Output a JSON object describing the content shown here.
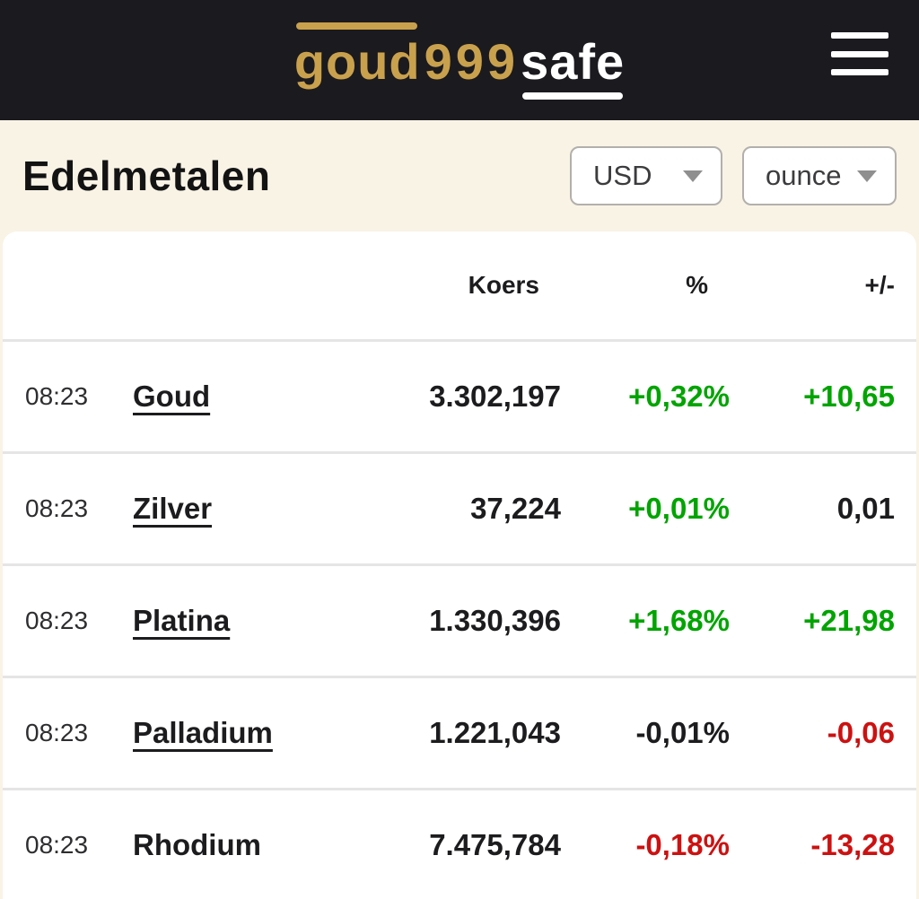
{
  "topbar": {
    "logo": {
      "part1": "goud",
      "part2": "999",
      "part3": "safe"
    },
    "menu_icon": "hamburger-icon"
  },
  "controls": {
    "title": "Edelmetalen",
    "currency_select": {
      "value": "USD"
    },
    "unit_select": {
      "value": "ounce"
    }
  },
  "table": {
    "columns": {
      "koers": "Koers",
      "pct": "%",
      "delta": "+/-"
    },
    "rows": [
      {
        "time": "08:23",
        "name": "Goud",
        "link": true,
        "koers": "3.302,197",
        "pct": "+0,32%",
        "pct_color": "green",
        "delta": "+10,65",
        "delta_color": "green"
      },
      {
        "time": "08:23",
        "name": "Zilver",
        "link": true,
        "koers": "37,224",
        "pct": "+0,01%",
        "pct_color": "green",
        "delta": "0,01",
        "delta_color": "neutral"
      },
      {
        "time": "08:23",
        "name": "Platina",
        "link": true,
        "koers": "1.330,396",
        "pct": "+1,68%",
        "pct_color": "green",
        "delta": "+21,98",
        "delta_color": "green"
      },
      {
        "time": "08:23",
        "name": "Palladium",
        "link": true,
        "koers": "1.221,043",
        "pct": "-0,01%",
        "pct_color": "neutral",
        "delta": "-0,06",
        "delta_color": "red"
      },
      {
        "time": "08:23",
        "name": "Rhodium",
        "link": false,
        "koers": "7.475,784",
        "pct": "-0,18%",
        "pct_color": "red",
        "delta": "-13,28",
        "delta_color": "red"
      }
    ],
    "status_colors": {
      "green": "#00a400",
      "red": "#cc1111",
      "neutral": "#1c1c1e"
    }
  }
}
